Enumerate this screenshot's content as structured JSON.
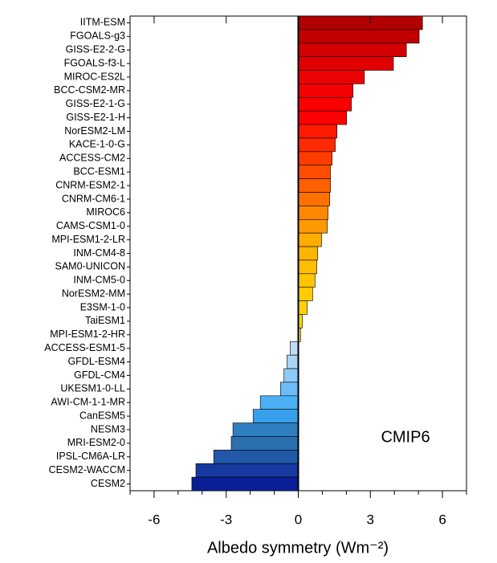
{
  "chart_data": {
    "type": "hbar",
    "categories": [
      "IITM-ESM",
      "FGOALS-g3",
      "GISS-E2-2-G",
      "FGOALS-f3-L",
      "MIROC-ES2L",
      "BCC-CSM2-MR",
      "GISS-E2-1-G",
      "GISS-E2-1-H",
      "NorESM2-LM",
      "KACE-1-0-G",
      "ACCESS-CM2",
      "BCC-ESM1",
      "CNRM-ESM2-1",
      "CNRM-CM6-1",
      "MIROC6",
      "CAMS-CSM1-0",
      "MPI-ESM1-2-LR",
      "INM-CM4-8",
      "SAM0-UNICON",
      "INM-CM5-0",
      "NorESM2-MM",
      "E3SM-1-0",
      "TaiESM1",
      "MPI-ESM1-2-HR",
      "ACCESS-ESM1-5",
      "GFDL-ESM4",
      "GFDL-CM4",
      "UKESM1-0-LL",
      "AWI-CM-1-1-MR",
      "CanESM5",
      "NESM3",
      "MRI-ESM2-0",
      "IPSL-CM6A-LR",
      "CESM2-WACCM",
      "CESM2"
    ],
    "values": [
      5.17,
      5.03,
      4.5,
      3.96,
      2.75,
      2.28,
      2.21,
      2.01,
      1.61,
      1.54,
      1.41,
      1.34,
      1.34,
      1.31,
      1.24,
      1.21,
      0.97,
      0.81,
      0.77,
      0.7,
      0.6,
      0.37,
      0.17,
      0.1,
      -0.34,
      -0.47,
      -0.6,
      -0.74,
      -1.58,
      -1.88,
      -2.72,
      -2.79,
      -3.52,
      -4.26,
      -4.43
    ],
    "colors": [
      "#b20000",
      "#c00000",
      "#d20000",
      "#e00000",
      "#ee0000",
      "#f50000",
      "#fa0000",
      "#ff0000",
      "#ff1a00",
      "#ff2a00",
      "#ff3c00",
      "#ff4e00",
      "#ff6000",
      "#ff7200",
      "#ff8800",
      "#ff9a00",
      "#ffac00",
      "#ffb400",
      "#ffbe00",
      "#ffc400",
      "#ffcc00",
      "#ffd200",
      "#ffd800",
      "#ffde00",
      "#bfdcf5",
      "#a8d4f7",
      "#8ccaf7",
      "#6ebcf7",
      "#4cb0f5",
      "#38a0ea",
      "#2f7fc0",
      "#2a6fae",
      "#2258a8",
      "#1638a0",
      "#0a1f96"
    ],
    "xlim": [
      -7,
      7
    ],
    "xticks": [
      -6,
      -3,
      0,
      3,
      6
    ],
    "xminorticks": [
      -7,
      -5,
      -4,
      -2,
      -1,
      1,
      2,
      4,
      5,
      7
    ],
    "xlabel": "Albedo symmetry (Wm⁻²)",
    "annotation": "CMIP6"
  }
}
